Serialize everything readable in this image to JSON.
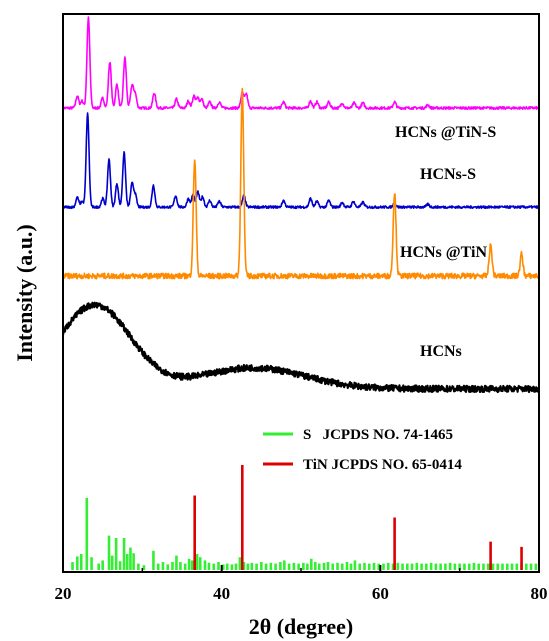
{
  "chart_data": {
    "type": "line",
    "xlabel": "2θ (degree)",
    "ylabel": "Intensity (a.u.)",
    "xlim": [
      20,
      80
    ],
    "xticks": [
      20,
      40,
      60,
      80
    ],
    "grid": false,
    "legend_position": "lower-right",
    "series": [
      {
        "name": "HCNs @TiN-S",
        "color": "#ff00ff",
        "baseline": 0.1,
        "peaks": [
          [
            21.8,
            0.12
          ],
          [
            22.4,
            0.07
          ],
          [
            23.2,
            0.9
          ],
          [
            25.0,
            0.1
          ],
          [
            25.9,
            0.46
          ],
          [
            26.8,
            0.24
          ],
          [
            27.8,
            0.5
          ],
          [
            28.7,
            0.22
          ],
          [
            29.1,
            0.14
          ],
          [
            31.5,
            0.15
          ],
          [
            34.3,
            0.09
          ],
          [
            35.8,
            0.07
          ],
          [
            36.5,
            0.12
          ],
          [
            37.0,
            0.1
          ],
          [
            37.5,
            0.09
          ],
          [
            38.5,
            0.06
          ],
          [
            39.7,
            0.06
          ],
          [
            42.6,
            0.15
          ],
          [
            43.1,
            0.14
          ],
          [
            47.8,
            0.06
          ],
          [
            51.2,
            0.07
          ],
          [
            52.0,
            0.06
          ],
          [
            53.5,
            0.06
          ],
          [
            55.2,
            0.05
          ],
          [
            56.7,
            0.05
          ],
          [
            57.8,
            0.05
          ],
          [
            61.8,
            0.06
          ],
          [
            66.0,
            0.03
          ]
        ]
      },
      {
        "name": "HCNs-S",
        "color": "#0000cc",
        "baseline": 0.02,
        "peaks": [
          [
            21.8,
            0.1
          ],
          [
            22.4,
            0.06
          ],
          [
            23.1,
            0.98
          ],
          [
            25.0,
            0.09
          ],
          [
            25.8,
            0.5
          ],
          [
            26.8,
            0.25
          ],
          [
            27.7,
            0.57
          ],
          [
            28.7,
            0.24
          ],
          [
            29.1,
            0.13
          ],
          [
            31.4,
            0.23
          ],
          [
            34.2,
            0.12
          ],
          [
            35.8,
            0.09
          ],
          [
            36.4,
            0.13
          ],
          [
            37.0,
            0.16
          ],
          [
            37.6,
            0.11
          ],
          [
            38.5,
            0.07
          ],
          [
            39.7,
            0.06
          ],
          [
            42.8,
            0.12
          ],
          [
            47.8,
            0.07
          ],
          [
            51.2,
            0.09
          ],
          [
            52.0,
            0.06
          ],
          [
            53.5,
            0.07
          ],
          [
            55.2,
            0.05
          ],
          [
            56.6,
            0.06
          ],
          [
            57.8,
            0.05
          ],
          [
            61.8,
            0.04
          ],
          [
            66.0,
            0.03
          ]
        ]
      },
      {
        "name": "HCNs @TiN",
        "color": "#ff8a00",
        "baseline": 0.1,
        "peaks": [
          [
            36.6,
            0.53
          ],
          [
            42.6,
            0.85
          ],
          [
            61.8,
            0.38
          ],
          [
            73.9,
            0.14
          ],
          [
            77.8,
            0.1
          ]
        ]
      },
      {
        "name": "HCNs",
        "color": "#000000",
        "baseline": 0.03,
        "humps": [
          [
            24.0,
            4.5,
            0.8
          ],
          [
            44.0,
            6.5,
            0.2
          ]
        ]
      }
    ],
    "reference_series": [
      {
        "name": "S",
        "legend": "S   JCPDS NO. 74-1465",
        "color": "#33ee33",
        "lines": [
          [
            21.2,
            0.1
          ],
          [
            21.8,
            0.17
          ],
          [
            22.3,
            0.2
          ],
          [
            23.0,
            0.9
          ],
          [
            23.6,
            0.16
          ],
          [
            24.5,
            0.08
          ],
          [
            25.0,
            0.12
          ],
          [
            25.8,
            0.43
          ],
          [
            26.2,
            0.18
          ],
          [
            26.7,
            0.4
          ],
          [
            27.2,
            0.11
          ],
          [
            27.7,
            0.4
          ],
          [
            28.1,
            0.2
          ],
          [
            28.5,
            0.28
          ],
          [
            28.9,
            0.21
          ],
          [
            29.5,
            0.08
          ],
          [
            30.2,
            0.06
          ],
          [
            31.4,
            0.24
          ],
          [
            32.0,
            0.08
          ],
          [
            32.6,
            0.1
          ],
          [
            33.2,
            0.07
          ],
          [
            33.8,
            0.1
          ],
          [
            34.3,
            0.18
          ],
          [
            34.8,
            0.1
          ],
          [
            35.4,
            0.08
          ],
          [
            35.9,
            0.14
          ],
          [
            36.3,
            0.12
          ],
          [
            36.9,
            0.2
          ],
          [
            37.3,
            0.16
          ],
          [
            37.9,
            0.12
          ],
          [
            38.4,
            0.09
          ],
          [
            39.0,
            0.08
          ],
          [
            39.6,
            0.1
          ],
          [
            40.2,
            0.07
          ],
          [
            40.7,
            0.08
          ],
          [
            41.3,
            0.07
          ],
          [
            41.8,
            0.08
          ],
          [
            42.3,
            0.16
          ],
          [
            42.8,
            0.1
          ],
          [
            43.3,
            0.08
          ],
          [
            43.8,
            0.09
          ],
          [
            44.4,
            0.08
          ],
          [
            45.0,
            0.1
          ],
          [
            45.6,
            0.08
          ],
          [
            46.2,
            0.09
          ],
          [
            46.8,
            0.08
          ],
          [
            47.4,
            0.1
          ],
          [
            47.9,
            0.12
          ],
          [
            48.5,
            0.08
          ],
          [
            49.1,
            0.09
          ],
          [
            49.7,
            0.08
          ],
          [
            50.3,
            0.09
          ],
          [
            50.8,
            0.08
          ],
          [
            51.3,
            0.14
          ],
          [
            51.8,
            0.1
          ],
          [
            52.3,
            0.08
          ],
          [
            52.9,
            0.09
          ],
          [
            53.4,
            0.1
          ],
          [
            54.0,
            0.08
          ],
          [
            54.6,
            0.09
          ],
          [
            55.2,
            0.08
          ],
          [
            55.8,
            0.1
          ],
          [
            56.3,
            0.08
          ],
          [
            56.8,
            0.12
          ],
          [
            57.4,
            0.08
          ],
          [
            58.0,
            0.09
          ],
          [
            58.6,
            0.08
          ],
          [
            59.2,
            0.09
          ],
          [
            59.8,
            0.08
          ],
          [
            60.4,
            0.08
          ],
          [
            61.0,
            0.09
          ],
          [
            61.6,
            0.08
          ],
          [
            62.2,
            0.09
          ],
          [
            62.8,
            0.08
          ],
          [
            63.4,
            0.08
          ],
          [
            64.0,
            0.08
          ],
          [
            64.6,
            0.09
          ],
          [
            65.2,
            0.08
          ],
          [
            65.8,
            0.08
          ],
          [
            66.4,
            0.09
          ],
          [
            67.0,
            0.08
          ],
          [
            67.6,
            0.08
          ],
          [
            68.2,
            0.08
          ],
          [
            68.8,
            0.09
          ],
          [
            69.4,
            0.08
          ],
          [
            70.0,
            0.08
          ],
          [
            70.6,
            0.08
          ],
          [
            71.2,
            0.08
          ],
          [
            71.8,
            0.09
          ],
          [
            72.4,
            0.08
          ],
          [
            73.0,
            0.08
          ],
          [
            73.6,
            0.08
          ],
          [
            74.2,
            0.08
          ],
          [
            74.8,
            0.08
          ],
          [
            75.4,
            0.08
          ],
          [
            76.0,
            0.08
          ],
          [
            76.6,
            0.08
          ],
          [
            77.2,
            0.08
          ],
          [
            77.8,
            0.08
          ],
          [
            78.4,
            0.08
          ],
          [
            79.0,
            0.08
          ],
          [
            79.6,
            0.08
          ]
        ]
      },
      {
        "name": "TiN",
        "legend": "TiN JCPDS NO. 65-0414",
        "color": "#dd0000",
        "lines": [
          [
            36.6,
            0.71
          ],
          [
            42.6,
            1.0
          ],
          [
            61.8,
            0.5
          ],
          [
            73.9,
            0.27
          ],
          [
            77.8,
            0.22
          ]
        ]
      }
    ]
  }
}
